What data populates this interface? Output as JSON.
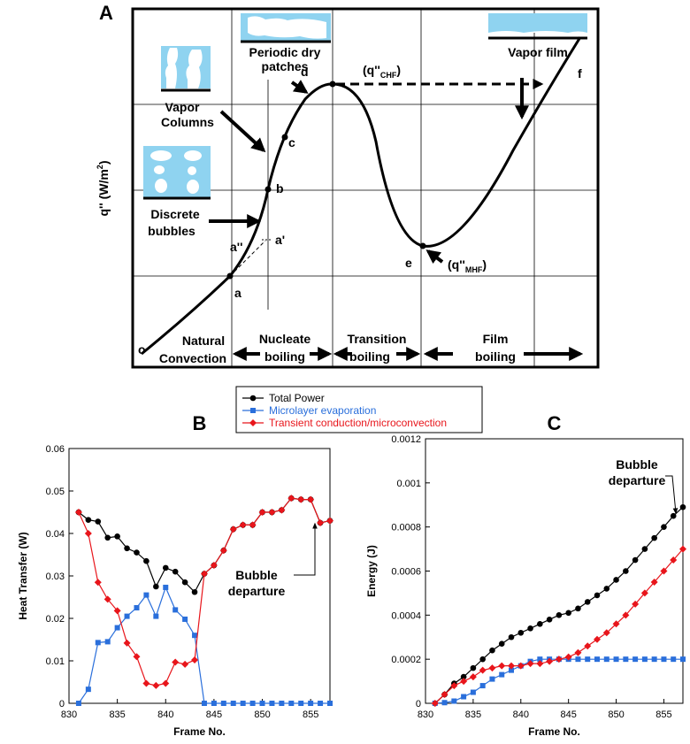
{
  "panel_a": {
    "title": "A",
    "y_label": {
      "text": "q'' (W/m",
      "superscript": "2",
      "end": ")"
    },
    "periodic": [
      "Periodic dry",
      "patches"
    ],
    "vapor_film": "Vapor film",
    "vapor_columns": [
      "Vapor",
      "Columns"
    ],
    "discrete": [
      "Discrete",
      "bubbles"
    ],
    "points": {
      "o": "o",
      "a": "a",
      "a2": "a''",
      "a1": "a'",
      "b": "b",
      "c": "c",
      "d": "d",
      "e": "e",
      "f": "f"
    },
    "chf": {
      "text": "(q''",
      "subscript": "CHF",
      "end": ")"
    },
    "mhf": {
      "text": "(q''",
      "subscript": "MHF",
      "end": ")"
    },
    "regimes": [
      [
        "Natural",
        "Convection"
      ],
      [
        "Nucleate",
        "boiling"
      ],
      [
        "Transition",
        "boiling"
      ],
      [
        "Film",
        "boiling"
      ]
    ]
  },
  "chart_data": [
    {
      "type": "line",
      "title": "B",
      "x_label": "Frame No.",
      "y_label": "Heat Transfer (W)",
      "x": [
        831,
        832,
        833,
        834,
        835,
        836,
        837,
        838,
        839,
        840,
        841,
        842,
        843,
        844,
        845,
        846,
        847,
        848,
        849,
        850,
        851,
        852,
        853,
        854,
        855,
        856,
        857
      ],
      "xlim": [
        830,
        857
      ],
      "xticks": [
        830,
        835,
        840,
        845,
        850,
        855
      ],
      "ylim": [
        0,
        0.06
      ],
      "yticks": [
        0,
        0.01,
        0.02,
        0.03,
        0.04,
        0.05,
        0.06
      ],
      "annotation": [
        "Bubble",
        "departure"
      ],
      "series": [
        {
          "name": "Total Power",
          "color": "#000000",
          "marker": "circle",
          "values": [
            0.045,
            0.0432,
            0.0428,
            0.039,
            0.0393,
            0.0365,
            0.0355,
            0.0335,
            0.0275,
            0.0319,
            0.031,
            0.0285,
            0.0262,
            0.0305,
            0.0325,
            0.036,
            0.041,
            0.042,
            0.042,
            0.045,
            0.045,
            0.0455,
            0.0483,
            0.048,
            0.048,
            0.0425,
            0.043
          ]
        },
        {
          "name": "Microlayer  evaporation",
          "color": "#2a6fdb",
          "marker": "square",
          "values": [
            0,
            0.0033,
            0.0143,
            0.0145,
            0.0178,
            0.0205,
            0.0225,
            0.0255,
            0.0205,
            0.0273,
            0.022,
            0.0198,
            0.016,
            0,
            0,
            0,
            0,
            0,
            0,
            0,
            0,
            0,
            0,
            0,
            0,
            0,
            0
          ]
        },
        {
          "name": "Transient conduction/microconvection",
          "color": "#e8151b",
          "marker": "diamond",
          "values": [
            0.045,
            0.04,
            0.0285,
            0.0245,
            0.0218,
            0.0142,
            0.011,
            0.0047,
            0.0042,
            0.0047,
            0.0097,
            0.0092,
            0.0102,
            0.0305,
            0.0325,
            0.036,
            0.041,
            0.042,
            0.042,
            0.045,
            0.045,
            0.0455,
            0.0483,
            0.048,
            0.048,
            0.0425,
            0.043
          ]
        }
      ]
    },
    {
      "type": "line",
      "title": "C",
      "x_label": "Frame No.",
      "y_label": "Energy (J)",
      "x": [
        831,
        832,
        833,
        834,
        835,
        836,
        837,
        838,
        839,
        840,
        841,
        842,
        843,
        844,
        845,
        846,
        847,
        848,
        849,
        850,
        851,
        852,
        853,
        854,
        855,
        856,
        857
      ],
      "xlim": [
        830,
        857
      ],
      "xticks": [
        830,
        835,
        840,
        845,
        850,
        855
      ],
      "ylim": [
        0,
        0.0012
      ],
      "yticks": [
        0,
        0.0002,
        0.0004,
        0.0006,
        0.0008,
        0.001,
        0.0012
      ],
      "annotation": [
        "Bubble",
        "departure"
      ],
      "series": [
        {
          "color": "#000000",
          "marker": "circle",
          "values": [
            0,
            4e-05,
            9e-05,
            0.00012,
            0.00016,
            0.0002,
            0.00024,
            0.00027,
            0.0003,
            0.00032,
            0.00034,
            0.00036,
            0.00038,
            0.0004,
            0.00041,
            0.00043,
            0.00046,
            0.00049,
            0.00052,
            0.00056,
            0.0006,
            0.00065,
            0.0007,
            0.00075,
            0.0008,
            0.00085,
            0.00089
          ]
        },
        {
          "color": "#2a6fdb",
          "marker": "square",
          "values": [
            0,
            3e-06,
            1e-05,
            3e-05,
            5e-05,
            8e-05,
            0.00011,
            0.00013,
            0.00015,
            0.00017,
            0.00019,
            0.0002,
            0.0002,
            0.0002,
            0.0002,
            0.0002,
            0.0002,
            0.0002,
            0.0002,
            0.0002,
            0.0002,
            0.0002,
            0.0002,
            0.0002,
            0.0002,
            0.0002,
            0.0002
          ]
        },
        {
          "color": "#e8151b",
          "marker": "diamond",
          "values": [
            0,
            4e-05,
            8e-05,
            0.0001,
            0.00012,
            0.00015,
            0.00016,
            0.00017,
            0.00017,
            0.00017,
            0.00018,
            0.00018,
            0.00019,
            0.0002,
            0.00021,
            0.00023,
            0.00026,
            0.00029,
            0.00032,
            0.00036,
            0.0004,
            0.00045,
            0.0005,
            0.00055,
            0.0006,
            0.00065,
            0.0007
          ]
        }
      ]
    }
  ]
}
